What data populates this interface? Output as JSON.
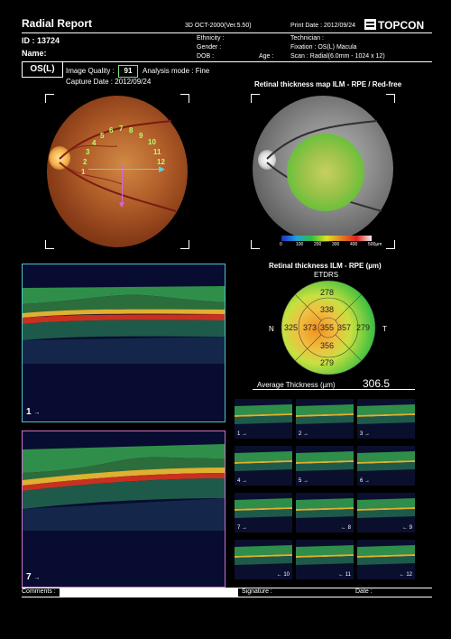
{
  "header": {
    "title": "Radial Report",
    "device": "3D OCT-2000(Ver.5.50)",
    "print_date": "Print Date : 2012/09/24",
    "brand": "TOPCON",
    "id": "ID : 13724",
    "name": "Name:",
    "ethnicity": "Ethnicity :",
    "gender": "Gender :",
    "dob": "DOB :",
    "age": "Age :",
    "technician": "Technician :",
    "fixation": "Fixation : OS(L) Macula",
    "scan": "Scan : Radial(6.0mm - 1024 x 12)"
  },
  "eye": "OS(L)",
  "image_quality_label": "Image Quality :",
  "image_quality_value": "91",
  "analysis_mode": "Analysis mode : Fine",
  "capture_date": "Capture Date : 2012/09/24",
  "map_title": "Retinal thickness map ILM - RPE / Red-free",
  "scale_ticks": [
    "0",
    "100",
    "200",
    "300",
    "400",
    "500µm"
  ],
  "scan_numbers": [
    "1",
    "2",
    "3",
    "4",
    "5",
    "6",
    "7",
    "8",
    "9",
    "10",
    "11",
    "12"
  ],
  "etdrs": {
    "title": "Retinal thickness ILM - RPE (µm)",
    "subtitle": "ETDRS",
    "left": "N",
    "right": "T",
    "outer_top": "278",
    "outer_left": "325",
    "outer_right": "279",
    "outer_bottom": "279",
    "inner_top": "338",
    "inner_left": "373",
    "center": "355",
    "inner_right": "357",
    "inner_bottom": "356"
  },
  "avg_label": "Average Thickness   (µm)",
  "avg_value": "306.5",
  "big_scans": [
    {
      "label": "1",
      "arrow": "→"
    },
    {
      "label": "7",
      "arrow": "→"
    }
  ],
  "thumbs": [
    {
      "label": "1 →",
      "side": "left"
    },
    {
      "label": "2 →",
      "side": "left"
    },
    {
      "label": "3 →",
      "side": "left"
    },
    {
      "label": "4 →",
      "side": "left"
    },
    {
      "label": "5 →",
      "side": "left"
    },
    {
      "label": "6 →",
      "side": "left"
    },
    {
      "label": "7 →",
      "side": "left"
    },
    {
      "label": "← 8",
      "side": "right"
    },
    {
      "label": "← 9",
      "side": "right"
    },
    {
      "label": "← 10",
      "side": "right"
    },
    {
      "label": "← 11",
      "side": "right"
    },
    {
      "label": "← 12",
      "side": "right"
    }
  ],
  "footer": {
    "comments": "Comments :",
    "signature": "Signature :",
    "date": "Date :"
  },
  "colors": {
    "scan1_frame": "#4fc3c8",
    "scan7_frame": "#d070d0",
    "quality_box": "#7fdc7f",
    "arrow_h": "#5fd0e0",
    "arrow_v": "#e060e0"
  }
}
